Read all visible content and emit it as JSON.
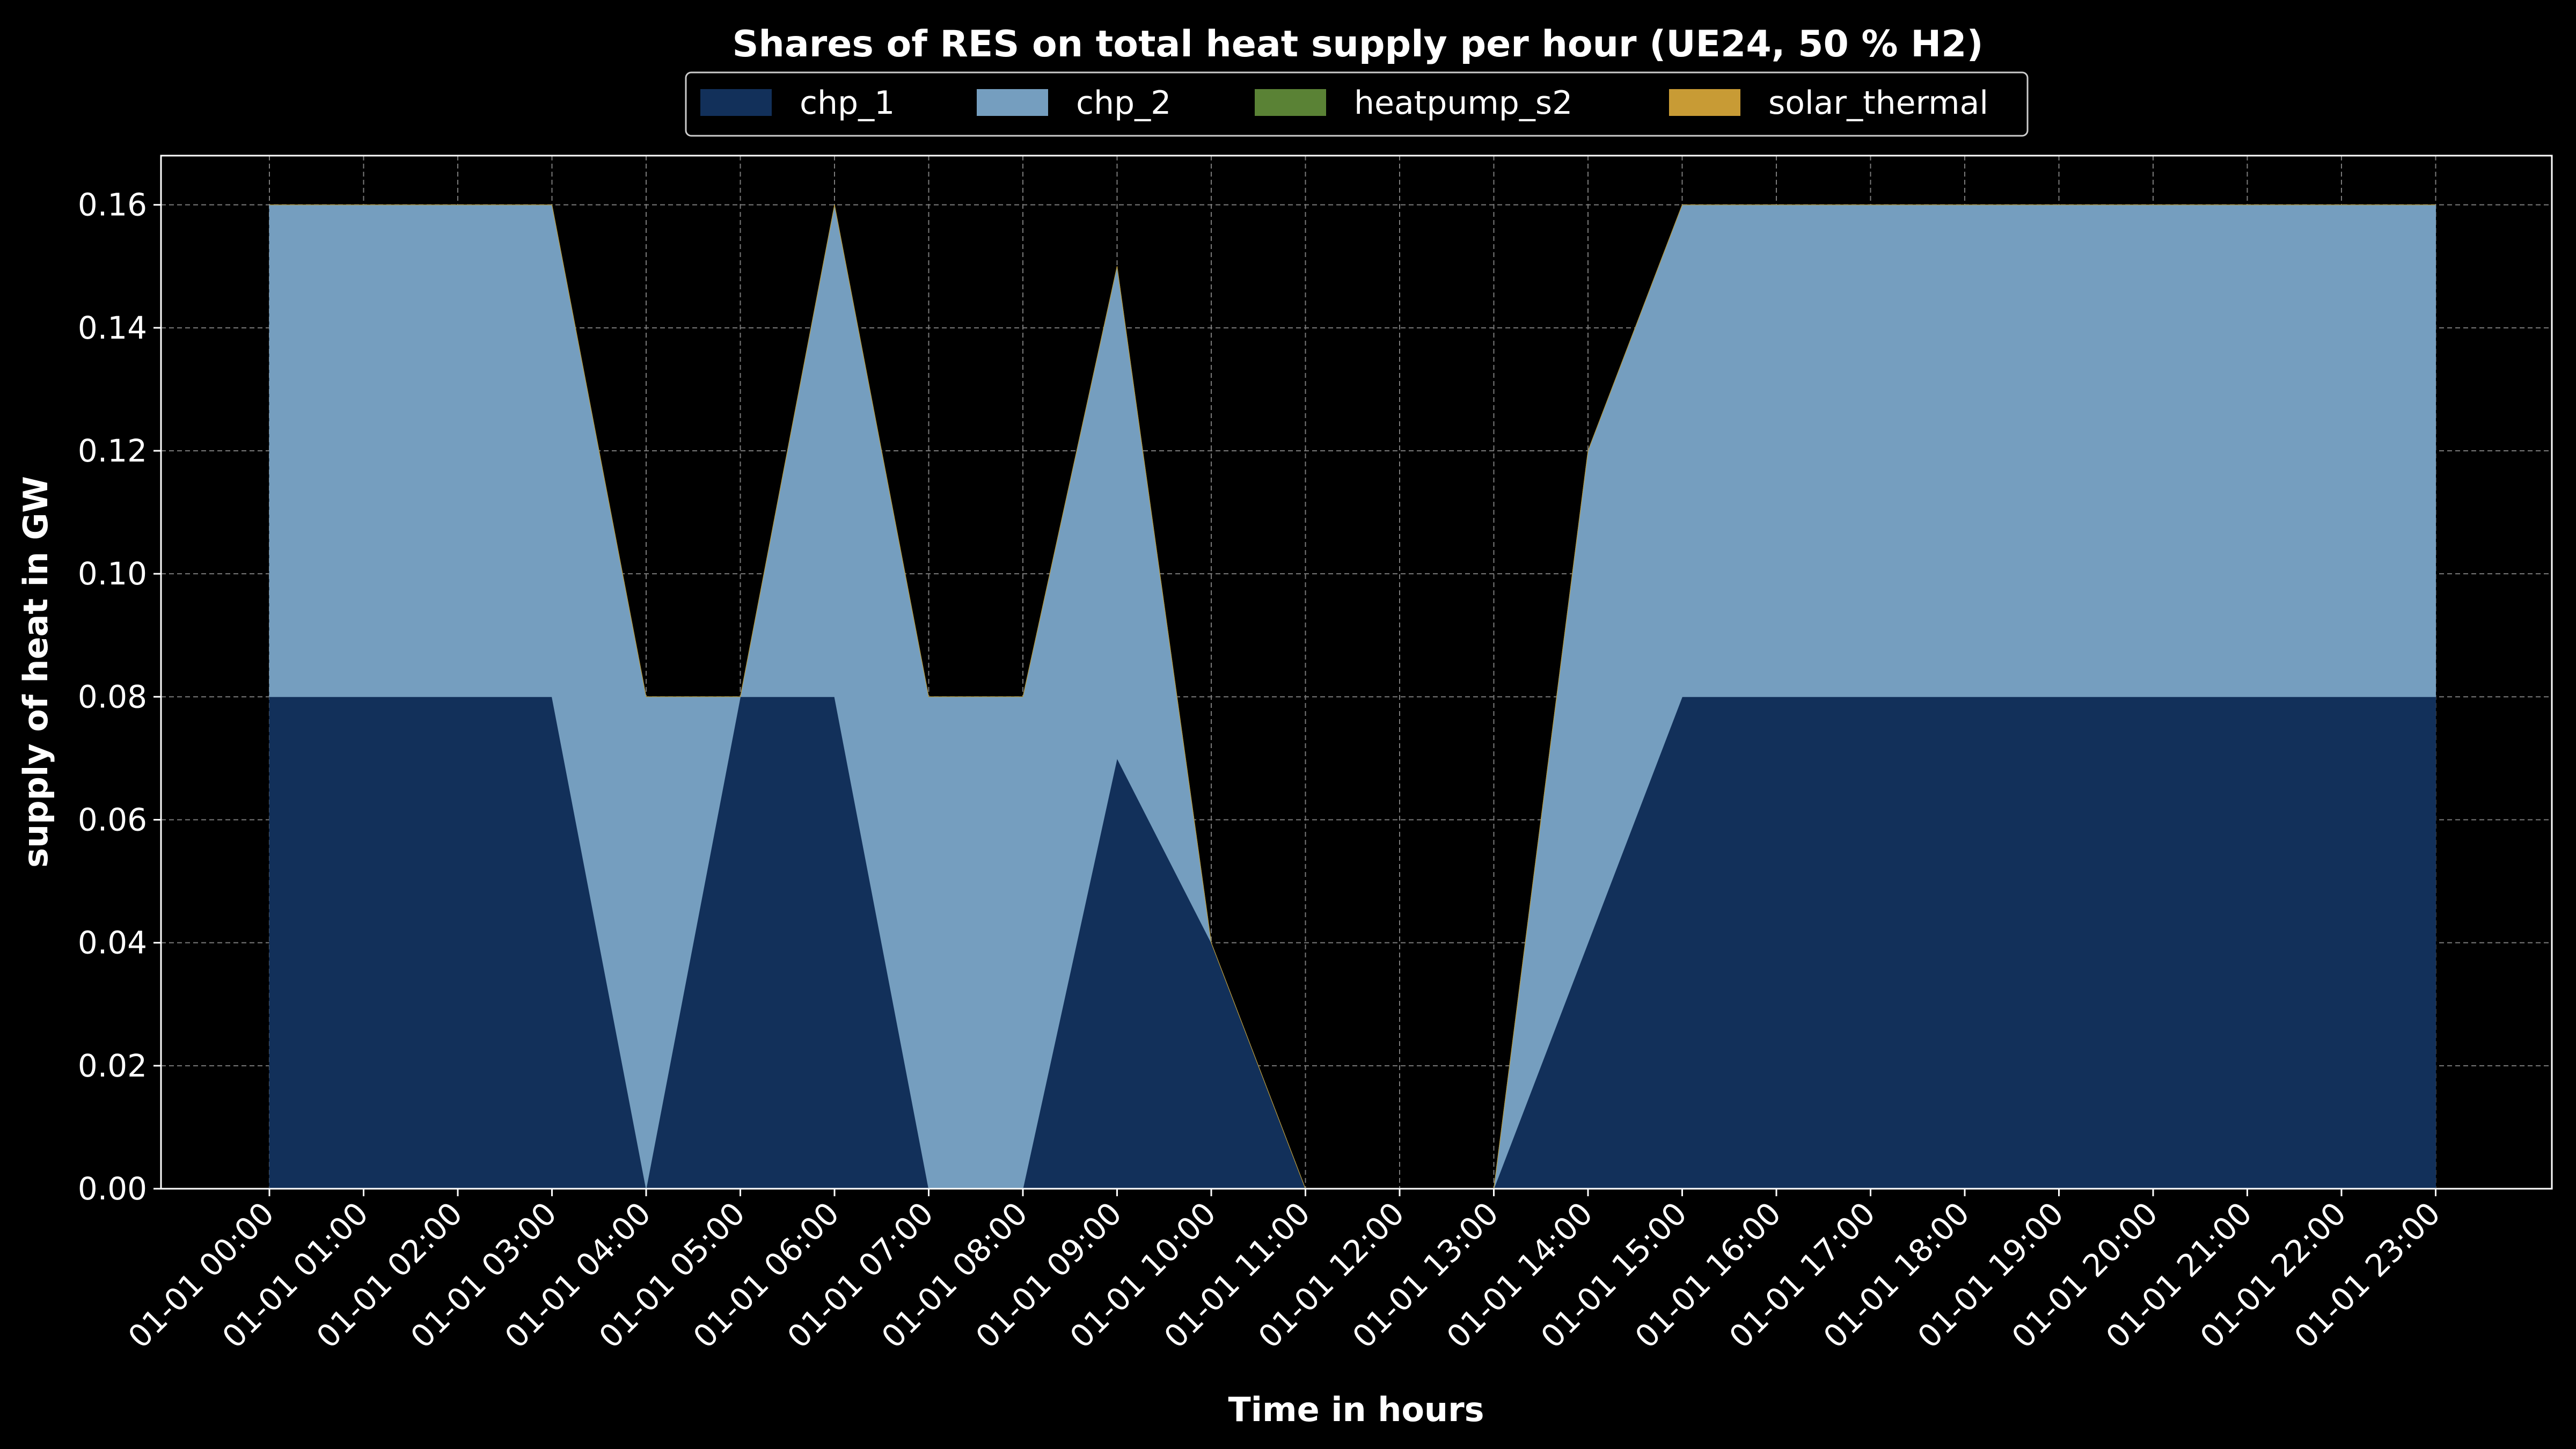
{
  "chart_data": {
    "type": "area",
    "stacked": true,
    "title": "Shares of RES on total heat supply per hour (UE24, 50 % H2)",
    "xlabel": "Time in hours",
    "ylabel": "supply of heat in GW",
    "categories": [
      "01-01 00:00",
      "01-01 01:00",
      "01-01 02:00",
      "01-01 03:00",
      "01-01 04:00",
      "01-01 05:00",
      "01-01 06:00",
      "01-01 07:00",
      "01-01 08:00",
      "01-01 09:00",
      "01-01 10:00",
      "01-01 11:00",
      "01-01 12:00",
      "01-01 13:00",
      "01-01 14:00",
      "01-01 15:00",
      "01-01 16:00",
      "01-01 17:00",
      "01-01 18:00",
      "01-01 19:00",
      "01-01 20:00",
      "01-01 21:00",
      "01-01 22:00",
      "01-01 23:00"
    ],
    "ylim": [
      0,
      0.168
    ],
    "yticks": [
      "0.00",
      "0.02",
      "0.04",
      "0.06",
      "0.08",
      "0.10",
      "0.12",
      "0.14",
      "0.16"
    ],
    "grid": true,
    "legend_position": "top-center",
    "series": [
      {
        "name": "chp_1",
        "color": "#12305a",
        "values": [
          0.08,
          0.08,
          0.08,
          0.08,
          0.0,
          0.08,
          0.08,
          0.0,
          0.0,
          0.07,
          0.04,
          0.0,
          0.0,
          0.0,
          0.04,
          0.08,
          0.08,
          0.08,
          0.08,
          0.08,
          0.08,
          0.08,
          0.08,
          0.08
        ]
      },
      {
        "name": "chp_2",
        "color": "#759ebf",
        "values": [
          0.08,
          0.08,
          0.08,
          0.08,
          0.08,
          0.0,
          0.08,
          0.08,
          0.08,
          0.08,
          0.0,
          0.0,
          0.0,
          0.0,
          0.08,
          0.08,
          0.08,
          0.08,
          0.08,
          0.08,
          0.08,
          0.08,
          0.08,
          0.08
        ]
      },
      {
        "name": "heatpump_s2",
        "color": "#5a8235",
        "values": [
          0,
          0,
          0,
          0,
          0,
          0,
          0,
          0,
          0,
          0,
          0,
          0,
          0,
          0,
          0,
          0,
          0,
          0,
          0,
          0,
          0,
          0,
          0,
          0
        ]
      },
      {
        "name": "solar_thermal",
        "color": "#c89b35",
        "values": [
          0,
          0,
          0,
          0,
          0,
          0,
          0,
          0,
          0,
          0,
          0,
          0,
          0,
          0,
          0,
          0,
          0,
          0,
          0,
          0,
          0,
          0,
          0,
          0
        ]
      }
    ]
  }
}
